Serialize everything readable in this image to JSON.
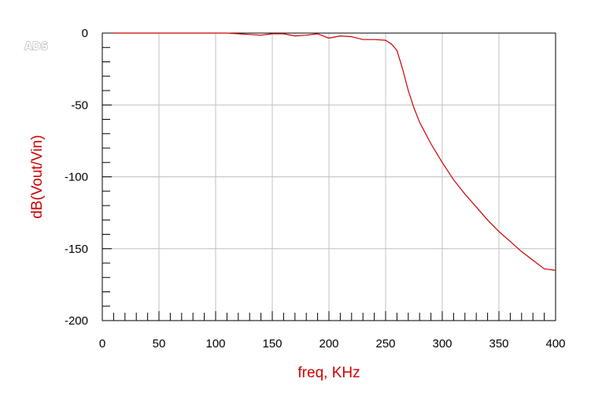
{
  "app_logo": "ADS",
  "colors": {
    "trace": "#cc0000",
    "axis_label": "#cc0000",
    "grid": "#c0c0c0",
    "frame": "#000000",
    "background": "#ffffff"
  },
  "chart_data": {
    "type": "line",
    "title": "",
    "xlabel": "freq, KHz",
    "ylabel": "dB(Vout/Vin)",
    "xlim": [
      0,
      400
    ],
    "ylim": [
      -200,
      0
    ],
    "x_ticks": [
      0,
      50,
      100,
      150,
      200,
      250,
      300,
      350,
      400
    ],
    "y_ticks": [
      0,
      -50,
      -100,
      -150,
      -200
    ],
    "x_minor_step": 10,
    "y_minor_step": 10,
    "grid": true,
    "legend": "none",
    "series": [
      {
        "x": [
          10,
          20,
          30,
          40,
          50,
          60,
          70,
          80,
          90,
          100,
          110,
          120,
          130,
          140,
          150,
          160,
          170,
          180,
          190,
          200,
          210,
          220,
          230,
          240,
          250,
          255,
          260,
          265,
          270,
          275,
          280,
          290,
          300,
          310,
          320,
          330,
          340,
          350,
          360,
          370,
          380,
          390,
          400
        ],
        "y": [
          0,
          0,
          0,
          0,
          0,
          0,
          0,
          0,
          0,
          0,
          0,
          -0.5,
          -1,
          -1.5,
          -0.5,
          -0.5,
          -2,
          -1.5,
          -0.5,
          -3.5,
          -2,
          -2.5,
          -4.5,
          -4.5,
          -5,
          -7.5,
          -12,
          -25,
          -40,
          -52,
          -62,
          -77,
          -90,
          -102,
          -112,
          -121,
          -130,
          -138,
          -145,
          -152,
          -158,
          -164,
          -165
        ]
      }
    ]
  }
}
